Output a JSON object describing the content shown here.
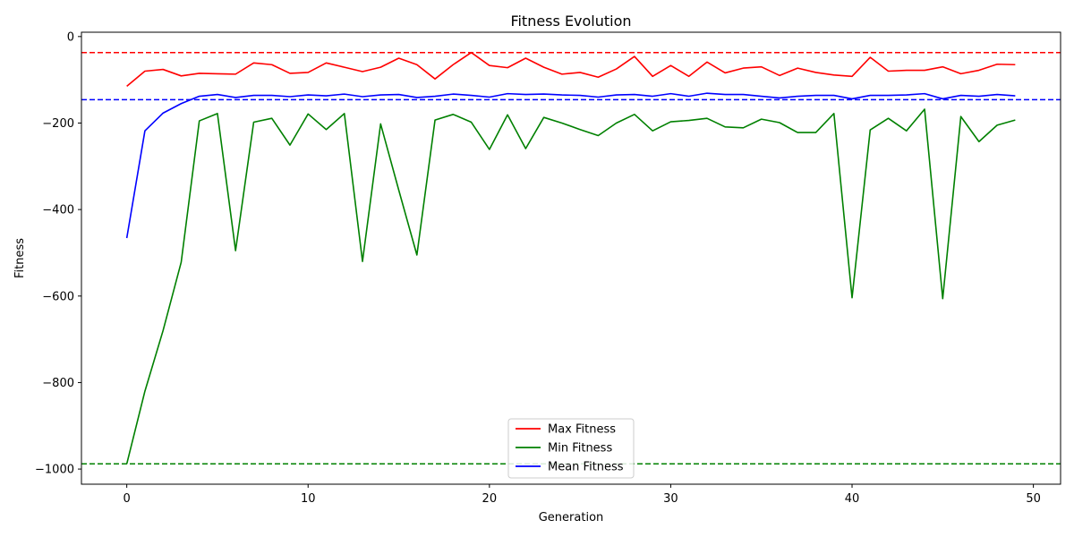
{
  "chart_data": {
    "type": "line",
    "title": "Fitness Evolution",
    "xlabel": "Generation",
    "ylabel": "Fitness",
    "xlim": [
      -2.5,
      51.5
    ],
    "ylim": [
      -1035,
      10
    ],
    "x_ticks": [
      0,
      10,
      20,
      30,
      40,
      50
    ],
    "y_ticks": [
      0,
      -200,
      -400,
      -600,
      -800,
      -1000
    ],
    "x_tick_labels": [
      "0",
      "10",
      "20",
      "30",
      "40",
      "50"
    ],
    "y_tick_labels": [
      "0",
      "−200",
      "−400",
      "−600",
      "−800",
      "−1000"
    ],
    "grid": false,
    "legend_position": "lower-center",
    "x": [
      0,
      1,
      2,
      3,
      4,
      5,
      6,
      7,
      8,
      9,
      10,
      11,
      12,
      13,
      14,
      15,
      16,
      17,
      18,
      19,
      20,
      21,
      22,
      23,
      24,
      25,
      26,
      27,
      28,
      29,
      30,
      31,
      32,
      33,
      34,
      35,
      36,
      37,
      38,
      39,
      40,
      41,
      42,
      43,
      44,
      45,
      46,
      47,
      48,
      49
    ],
    "series": [
      {
        "name": "Max Fitness",
        "color": "#ff0000",
        "values": [
          -115,
          -80,
          -76,
          -91,
          -85,
          -86,
          -87,
          -61,
          -65,
          -85,
          -83,
          -61,
          -71,
          -81,
          -71,
          -50,
          -65,
          -98,
          -65,
          -37,
          -67,
          -72,
          -50,
          -71,
          -87,
          -83,
          -94,
          -75,
          -46,
          -92,
          -67,
          -92,
          -59,
          -84,
          -73,
          -70,
          -90,
          -73,
          -83,
          -89,
          -92,
          -48,
          -80,
          -78,
          -78,
          -70,
          -86,
          -78,
          -64,
          -65
        ]
      },
      {
        "name": "Min Fitness",
        "color": "#008000",
        "values": [
          -988,
          -820,
          -680,
          -522,
          -195,
          -178,
          -495,
          -198,
          -189,
          -251,
          -179,
          -215,
          -178,
          -520,
          -202,
          -355,
          -505,
          -193,
          -180,
          -198,
          -261,
          -181,
          -259,
          -187,
          -200,
          -215,
          -229,
          -200,
          -180,
          -218,
          -197,
          -194,
          -189,
          -209,
          -211,
          -191,
          -199,
          -222,
          -222,
          -178,
          -604,
          -216,
          -189,
          -218,
          -168,
          -606,
          -185,
          -243,
          -205,
          -193
        ]
      },
      {
        "name": "Mean Fitness",
        "color": "#0000ff",
        "values": [
          -466,
          -218,
          -177,
          -155,
          -138,
          -134,
          -141,
          -136,
          -136,
          -139,
          -135,
          -137,
          -133,
          -139,
          -135,
          -134,
          -141,
          -138,
          -133,
          -136,
          -140,
          -132,
          -134,
          -133,
          -135,
          -136,
          -140,
          -135,
          -134,
          -138,
          -132,
          -138,
          -131,
          -134,
          -134,
          -138,
          -142,
          -138,
          -136,
          -136,
          -144,
          -136,
          -136,
          -135,
          -132,
          -144,
          -136,
          -138,
          -134,
          -137
        ]
      }
    ],
    "reference_lines": [
      {
        "y": -37,
        "color": "#ff0000",
        "style": "dashed"
      },
      {
        "y": -146,
        "color": "#0000ff",
        "style": "dashed"
      },
      {
        "y": -988,
        "color": "#008000",
        "style": "dashed"
      }
    ]
  }
}
